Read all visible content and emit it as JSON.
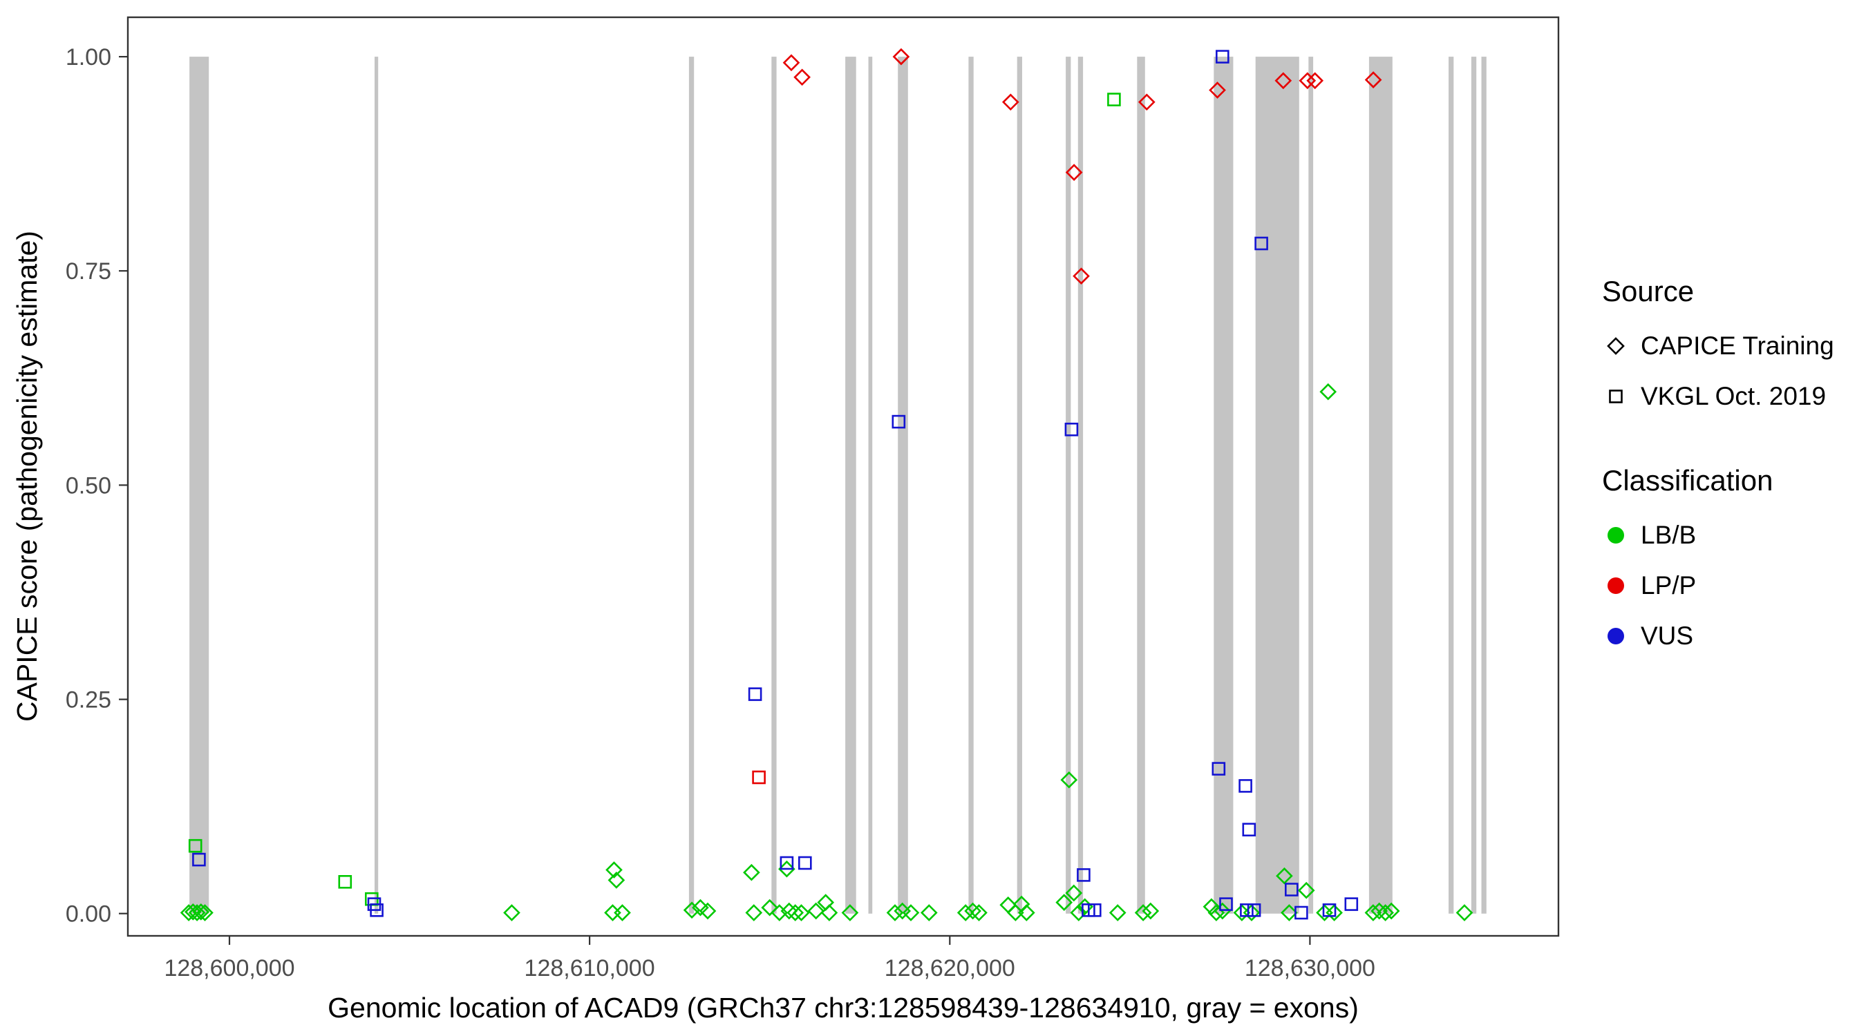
{
  "chart_data": {
    "type": "scatter",
    "title": "",
    "xlabel": "Genomic location of ACAD9 (GRCh37 chr3:128598439-128634910, gray = exons)",
    "ylabel": "CAPICE score (pathogenicity estimate)",
    "xlim": [
      128597180,
      128636900
    ],
    "ylim": [
      -0.026,
      1.046
    ],
    "x_ticks": [
      128600000,
      128610000,
      128620000,
      128630000
    ],
    "x_tick_labels": [
      "128,600,000",
      "128,610,000",
      "128,620,000",
      "128,630,000"
    ],
    "y_ticks": [
      0,
      0.25,
      0.5,
      0.75,
      1
    ],
    "y_tick_labels": [
      "0.00",
      "0.25",
      "0.50",
      "0.75",
      "1.00"
    ],
    "grid": "off",
    "legend_position": "right",
    "exon_color": "#C4C4C4",
    "panel_border_color": "#333333",
    "tick_label_color": "#4D4D4D",
    "exons": [
      [
        128598890,
        128599430
      ],
      [
        128604030,
        128604130
      ],
      [
        128612760,
        128612900
      ],
      [
        128615050,
        128615190
      ],
      [
        128617100,
        128617400
      ],
      [
        128617740,
        128617850
      ],
      [
        128618560,
        128618840
      ],
      [
        128620520,
        128620660
      ],
      [
        128621870,
        128622010
      ],
      [
        128623220,
        128623360
      ],
      [
        128623560,
        128623700
      ],
      [
        128625200,
        128625420
      ],
      [
        128627330,
        128627870
      ],
      [
        128628490,
        128629700
      ],
      [
        128629960,
        128630090
      ],
      [
        128631640,
        128632290
      ],
      [
        128633850,
        128633990
      ],
      [
        128634480,
        128634620
      ],
      [
        128634760,
        128634900
      ]
    ],
    "series": [
      {
        "name": "CAPICE Training - LB/B",
        "source": "CAPICE Training",
        "classification": "LB/B",
        "marker": "diamond",
        "color": "#00C800",
        "points": [
          [
            128598870,
            0.001
          ],
          [
            128598990,
            0.002
          ],
          [
            128599100,
            0.001
          ],
          [
            128599210,
            0.002
          ],
          [
            128599320,
            0.001
          ],
          [
            128607840,
            0.001
          ],
          [
            128610680,
            0.051
          ],
          [
            128610745,
            0.039
          ],
          [
            128610640,
            0.001
          ],
          [
            128610910,
            0.001
          ],
          [
            128612840,
            0.004
          ],
          [
            128613075,
            0.007
          ],
          [
            128613280,
            0.003
          ],
          [
            128614495,
            0.048
          ],
          [
            128614560,
            0.001
          ],
          [
            128615000,
            0.007
          ],
          [
            128615270,
            0.001
          ],
          [
            128615475,
            0.052
          ],
          [
            128615540,
            0.003
          ],
          [
            128615710,
            0.001
          ],
          [
            128615880,
            0.001
          ],
          [
            128616285,
            0.003
          ],
          [
            128616555,
            0.013
          ],
          [
            128616655,
            0.001
          ],
          [
            128617230,
            0.001
          ],
          [
            128618480,
            0.001
          ],
          [
            128618685,
            0.003
          ],
          [
            128618920,
            0.001
          ],
          [
            128619425,
            0.001
          ],
          [
            128620440,
            0.001
          ],
          [
            128620640,
            0.003
          ],
          [
            128620810,
            0.001
          ],
          [
            128621620,
            0.01
          ],
          [
            128621825,
            0.001
          ],
          [
            128621993,
            0.011
          ],
          [
            128622130,
            0.001
          ],
          [
            128623175,
            0.013
          ],
          [
            128623310,
            0.156
          ],
          [
            128623445,
            0.024
          ],
          [
            128623580,
            0.001
          ],
          [
            128623750,
            0.008
          ],
          [
            128624662,
            0.001
          ],
          [
            128625370,
            0.001
          ],
          [
            128625575,
            0.003
          ],
          [
            128627265,
            0.008
          ],
          [
            128627400,
            0.001
          ],
          [
            128627570,
            0.003
          ],
          [
            128628110,
            0.001
          ],
          [
            128628380,
            0.001
          ],
          [
            128629290,
            0.044
          ],
          [
            128629425,
            0.001
          ],
          [
            128629900,
            0.027
          ],
          [
            128630405,
            0.001
          ],
          [
            128630505,
            0.609
          ],
          [
            128630675,
            0.001
          ],
          [
            128631755,
            0.001
          ],
          [
            128631925,
            0.003
          ],
          [
            128632095,
            0.001
          ],
          [
            128632260,
            0.003
          ],
          [
            128634290,
            0.001
          ]
        ]
      },
      {
        "name": "CAPICE Training - LP/P",
        "source": "CAPICE Training",
        "classification": "LP/P",
        "marker": "diamond",
        "color": "#E60000",
        "points": [
          [
            128615600,
            0.993
          ],
          [
            128615900,
            0.976
          ],
          [
            128618650,
            1.0
          ],
          [
            128621690,
            0.947
          ],
          [
            128623450,
            0.865
          ],
          [
            128623650,
            0.744
          ],
          [
            128625470,
            0.947
          ],
          [
            128627430,
            0.961
          ],
          [
            128629260,
            0.972
          ],
          [
            128629930,
            0.972
          ],
          [
            128630140,
            0.972
          ],
          [
            128631760,
            0.973
          ]
        ]
      },
      {
        "name": "VKGL Oct. 2019 - LB/B",
        "source": "VKGL Oct. 2019",
        "classification": "LB/B",
        "marker": "square",
        "color": "#00C800",
        "points": [
          [
            128599055,
            0.079
          ],
          [
            128603210,
            0.037
          ],
          [
            128603950,
            0.017
          ],
          [
            128624560,
            0.95
          ]
        ]
      },
      {
        "name": "VKGL Oct. 2019 - LP/P",
        "source": "VKGL Oct. 2019",
        "classification": "LP/P",
        "marker": "square",
        "color": "#E60000",
        "points": [
          [
            128614700,
            0.159
          ]
        ]
      },
      {
        "name": "VKGL Oct. 2019 - VUS",
        "source": "VKGL Oct. 2019",
        "classification": "VUS",
        "marker": "square",
        "color": "#1414D2",
        "points": [
          [
            128599155,
            0.063
          ],
          [
            128604020,
            0.011
          ],
          [
            128604090,
            0.004
          ],
          [
            128614595,
            0.256
          ],
          [
            128615475,
            0.059
          ],
          [
            128615980,
            0.059
          ],
          [
            128618580,
            0.574
          ],
          [
            128623380,
            0.565
          ],
          [
            128623715,
            0.045
          ],
          [
            128623850,
            0.004
          ],
          [
            128624020,
            0.004
          ],
          [
            128627570,
            1.0
          ],
          [
            128627465,
            0.169
          ],
          [
            128627670,
            0.011
          ],
          [
            128628210,
            0.149
          ],
          [
            128628310,
            0.098
          ],
          [
            128628245,
            0.004
          ],
          [
            128628450,
            0.004
          ],
          [
            128628650,
            0.782
          ],
          [
            128629490,
            0.028
          ],
          [
            128629760,
            0.001
          ],
          [
            128630540,
            0.004
          ],
          [
            128631150,
            0.011
          ]
        ]
      }
    ]
  },
  "legend": {
    "source": {
      "title": "Source",
      "items": [
        {
          "label": "CAPICE Training",
          "marker": "diamond"
        },
        {
          "label": "VKGL Oct. 2019",
          "marker": "square"
        }
      ]
    },
    "classification": {
      "title": "Classification",
      "items": [
        {
          "label": "LB/B",
          "color": "#00C800"
        },
        {
          "label": "LP/P",
          "color": "#E60000"
        },
        {
          "label": "VUS",
          "color": "#1414D2"
        }
      ]
    }
  }
}
